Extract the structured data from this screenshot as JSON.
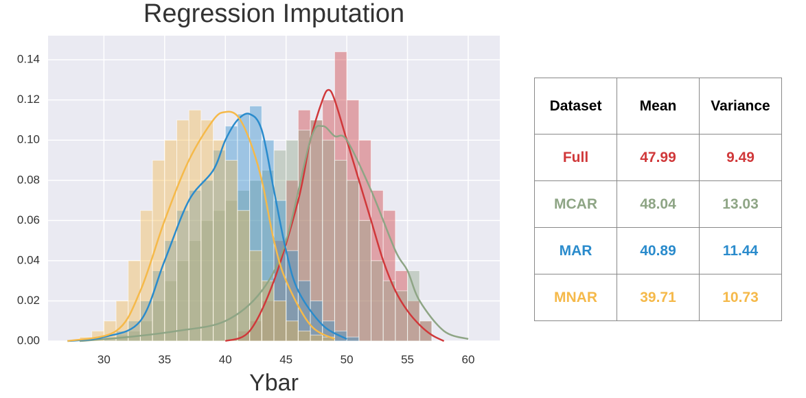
{
  "chart_data": {
    "type": "histogram",
    "title": "Regression Imputation",
    "x_label": "Ybar",
    "xlim": [
      25.4,
      62.6
    ],
    "ylim": [
      0,
      0.152
    ],
    "xticks": [
      30,
      35,
      40,
      45,
      50,
      55,
      60
    ],
    "yticks": [
      {
        "value": 0,
        "label": "0.00"
      },
      0.02,
      0.04,
      0.06,
      0.08,
      {
        "value": 0.1,
        "label": "0.10"
      },
      0.12,
      0.14
    ],
    "grid": true,
    "series": [
      {
        "name": "Full",
        "color": "#d0383a",
        "bins": [
          41,
          42,
          43,
          44,
          45,
          46,
          47,
          48,
          49,
          50,
          51,
          52,
          53,
          54,
          55,
          56,
          57
        ],
        "values": [
          0.005,
          0.01,
          0.02,
          0.05,
          0.08,
          0.115,
          0.11,
          0.12,
          0.144,
          0.12,
          0.1,
          0.075,
          0.065,
          0.035,
          0.02,
          0.01
        ],
        "kde_x": [
          40,
          42,
          44,
          46,
          47,
          48,
          48.5,
          49,
          50,
          51,
          52,
          53,
          54,
          55,
          56,
          57,
          58
        ],
        "kde_y": [
          0,
          0.005,
          0.03,
          0.07,
          0.1,
          0.12,
          0.125,
          0.12,
          0.1,
          0.08,
          0.06,
          0.04,
          0.025,
          0.015,
          0.008,
          0.003,
          0
        ]
      },
      {
        "name": "MCAR",
        "color": "#8ea585",
        "bins": [
          31,
          32,
          33,
          34,
          35,
          36,
          37,
          38,
          39,
          40,
          41,
          42,
          43,
          44,
          45,
          46,
          47,
          48,
          49,
          50,
          51,
          52,
          53,
          54,
          55,
          56,
          57
        ],
        "values": [
          0.003,
          0.005,
          0.01,
          0.02,
          0.03,
          0.04,
          0.05,
          0.06,
          0.065,
          0.07,
          0.075,
          0.08,
          0.085,
          0.095,
          0.1,
          0.105,
          0.11,
          0.1,
          0.09,
          0.08,
          0.06,
          0.04,
          0.03,
          0.025,
          0.035,
          0.01
        ],
        "kde_x": [
          28,
          32,
          36,
          40,
          43,
          45,
          47,
          48,
          49,
          50,
          52,
          54,
          55,
          56,
          58,
          60
        ],
        "kde_y": [
          0,
          0.002,
          0.005,
          0.01,
          0.025,
          0.05,
          0.1,
          0.107,
          0.102,
          0.1,
          0.075,
          0.045,
          0.035,
          0.02,
          0.005,
          0.001
        ]
      },
      {
        "name": "MAR",
        "color": "#2a8bcc",
        "bins": [
          30,
          31,
          32,
          33,
          34,
          35,
          36,
          37,
          38,
          39,
          40,
          41,
          42,
          43,
          44,
          45,
          46,
          47,
          48,
          49,
          50,
          51
        ],
        "values": [
          0.002,
          0.005,
          0.01,
          0.02,
          0.035,
          0.05,
          0.065,
          0.075,
          0.08,
          0.095,
          0.107,
          0.113,
          0.117,
          0.1,
          0.07,
          0.045,
          0.03,
          0.02,
          0.01,
          0.005,
          0.002
        ],
        "kde_x": [
          27,
          30,
          33,
          35,
          37,
          39,
          40,
          41,
          42,
          43,
          44,
          45,
          46,
          48,
          50
        ],
        "kde_y": [
          0,
          0.002,
          0.01,
          0.04,
          0.07,
          0.085,
          0.1,
          0.11,
          0.113,
          0.105,
          0.075,
          0.045,
          0.025,
          0.008,
          0.001
        ]
      },
      {
        "name": "MNAR",
        "color": "#f5b94a",
        "bins": [
          28,
          29,
          30,
          31,
          32,
          33,
          34,
          35,
          36,
          37,
          38,
          39,
          40,
          41,
          42,
          43,
          44,
          45,
          46,
          47,
          48,
          49
        ],
        "values": [
          0.002,
          0.005,
          0.01,
          0.02,
          0.04,
          0.065,
          0.09,
          0.1,
          0.11,
          0.115,
          0.11,
          0.1,
          0.09,
          0.065,
          0.045,
          0.03,
          0.02,
          0.01,
          0.005,
          0.003,
          0.002
        ],
        "kde_x": [
          27,
          31,
          33,
          35,
          37,
          39,
          40,
          41,
          42,
          43,
          44,
          45,
          47,
          49
        ],
        "kde_y": [
          0,
          0.005,
          0.025,
          0.06,
          0.09,
          0.11,
          0.114,
          0.112,
          0.1,
          0.08,
          0.05,
          0.03,
          0.008,
          0.001
        ]
      }
    ]
  },
  "table": {
    "header": [
      "Dataset",
      "Mean",
      "Variance"
    ],
    "rows": [
      [
        "Full",
        "47.99",
        "9.49"
      ],
      [
        "MCAR",
        "48.04",
        "13.03"
      ],
      [
        "MAR",
        "40.89",
        "11.44"
      ],
      [
        "MNAR",
        "39.71",
        "10.73"
      ]
    ],
    "row_colors": [
      "#d0383a",
      "#8ea585",
      "#2a8bcc",
      "#f5b94a"
    ]
  }
}
